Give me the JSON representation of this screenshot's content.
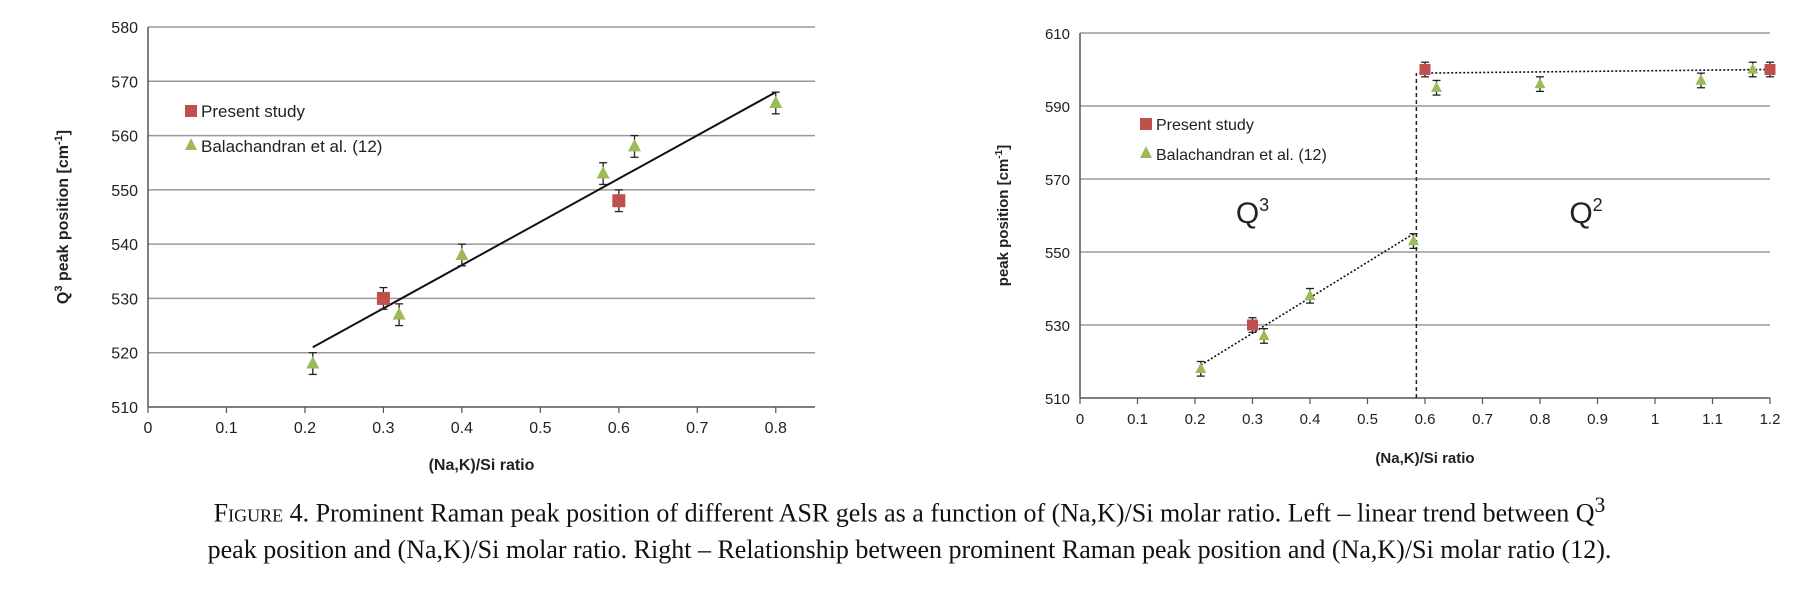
{
  "colors": {
    "present": "#c0504d",
    "balachandran": "#9bbb59",
    "grid": "#9a9a9a",
    "axis": "#555555",
    "trend": "#111111"
  },
  "chart_data": [
    {
      "type": "scatter",
      "xlabel": "(Na,K)/Si ratio",
      "ylabel_main": "Q",
      "ylabel_sup": "3",
      "ylabel_rest": " peak position [cm",
      "ylabel_sup2": "-1",
      "ylabel_end": "]",
      "xlim": [
        0,
        0.85
      ],
      "ylim": [
        510,
        580
      ],
      "xticks": [
        0,
        0.1,
        0.2,
        0.3,
        0.4,
        0.5,
        0.6,
        0.7,
        0.8
      ],
      "xtick_labels": [
        "0",
        "0.1",
        "0.2",
        "0.3",
        "0.4",
        "0.5",
        "0.6",
        "0.7",
        "0.8"
      ],
      "yticks": [
        510,
        520,
        530,
        540,
        550,
        560,
        570,
        580
      ],
      "ytick_labels": [
        "510",
        "520",
        "530",
        "540",
        "550",
        "560",
        "570",
        "580"
      ],
      "grid": "horizontal",
      "legend_position": "top-left",
      "series": [
        {
          "name": "Present study",
          "marker": "square",
          "points": [
            {
              "x": 0.3,
              "y": 530,
              "err": 2
            },
            {
              "x": 0.6,
              "y": 548,
              "err": 2
            }
          ]
        },
        {
          "name": "Balachandran et al. (12)",
          "marker": "triangle",
          "points": [
            {
              "x": 0.21,
              "y": 518,
              "err": 2
            },
            {
              "x": 0.32,
              "y": 527,
              "err": 2
            },
            {
              "x": 0.4,
              "y": 538,
              "err": 2
            },
            {
              "x": 0.58,
              "y": 553,
              "err": 2
            },
            {
              "x": 0.62,
              "y": 558,
              "err": 2
            },
            {
              "x": 0.8,
              "y": 566,
              "err": 2
            }
          ]
        }
      ],
      "trendlines": [
        {
          "style": "solid",
          "x": [
            0.21,
            0.8
          ],
          "y": [
            521,
            568
          ]
        }
      ]
    },
    {
      "type": "scatter",
      "xlabel": "(Na,K)/Si ratio",
      "ylabel_main": "peak position [cm",
      "ylabel_sup": "-1",
      "ylabel_end": "]",
      "xlim": [
        0,
        1.2
      ],
      "ylim": [
        510,
        610
      ],
      "xticks": [
        0,
        0.1,
        0.2,
        0.3,
        0.4,
        0.5,
        0.6,
        0.7,
        0.8,
        0.9,
        1,
        1.1,
        1.2
      ],
      "xtick_labels": [
        "0",
        "0.1",
        "0.2",
        "0.3",
        "0.4",
        "0.5",
        "0.6",
        "0.7",
        "0.8",
        "0.9",
        "1",
        "1.1",
        "1.2"
      ],
      "yticks": [
        510,
        530,
        550,
        570,
        590,
        610
      ],
      "ytick_labels": [
        "510",
        "530",
        "550",
        "570",
        "590",
        "610"
      ],
      "grid": "horizontal",
      "legend_position": "top-left",
      "series": [
        {
          "name": "Present study",
          "marker": "square",
          "points": [
            {
              "x": 0.3,
              "y": 530,
              "err": 2
            },
            {
              "x": 0.6,
              "y": 600,
              "err": 2
            },
            {
              "x": 1.2,
              "y": 600,
              "err": 2
            }
          ]
        },
        {
          "name": "Balachandran et al. (12)",
          "marker": "triangle",
          "points": [
            {
              "x": 0.21,
              "y": 518,
              "err": 2
            },
            {
              "x": 0.32,
              "y": 527,
              "err": 2
            },
            {
              "x": 0.4,
              "y": 538,
              "err": 2
            },
            {
              "x": 0.58,
              "y": 553,
              "err": 2
            },
            {
              "x": 0.62,
              "y": 595,
              "err": 2
            },
            {
              "x": 0.8,
              "y": 596,
              "err": 2
            },
            {
              "x": 1.08,
              "y": 597,
              "err": 2
            },
            {
              "x": 1.17,
              "y": 600,
              "err": 2
            }
          ]
        }
      ],
      "trendlines": [
        {
          "style": "dotted",
          "x": [
            0.21,
            0.58
          ],
          "y": [
            519,
            555
          ]
        },
        {
          "style": "dotted",
          "x": [
            0.59,
            1.2
          ],
          "y": [
            599,
            600
          ]
        }
      ],
      "divider": {
        "x": 0.585,
        "style": "dashed"
      },
      "annotations": [
        {
          "text_main": "Q",
          "text_sup": "3",
          "x": 0.3,
          "y": 558
        },
        {
          "text_main": "Q",
          "text_sup": "2",
          "x": 0.88,
          "y": 558
        }
      ]
    }
  ],
  "caption": {
    "lead": "Figure 4.",
    "part1": " Prominent Raman peak position of different ASR gels as a function of (Na,K)/Si molar ratio. Left – linear trend between Q",
    "sup": "3",
    "part2": "peak position and (Na,K)/Si molar ratio. Right – Relationship between prominent Raman peak position and (Na,K)/Si molar ratio (12)."
  }
}
